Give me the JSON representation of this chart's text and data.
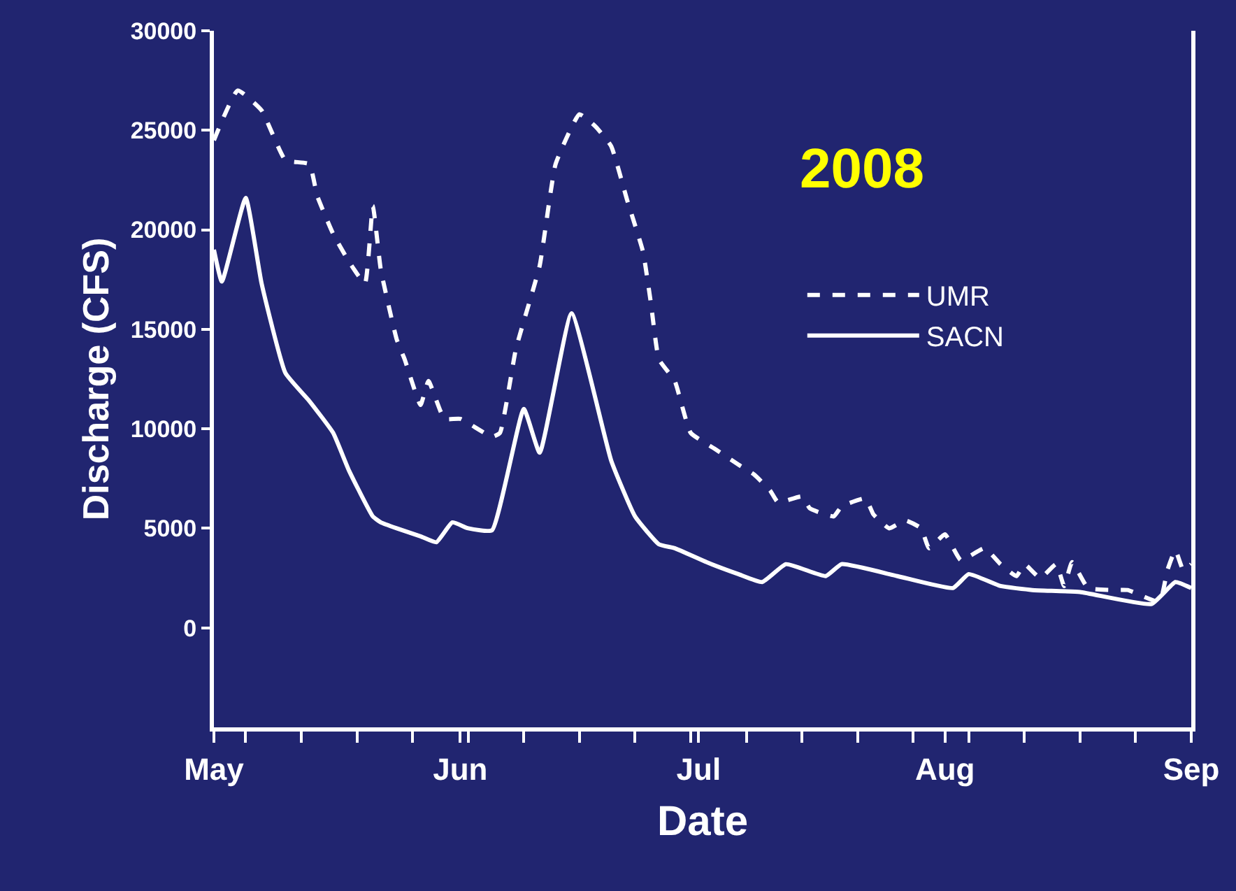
{
  "chart_data": {
    "type": "line",
    "title": "2008",
    "xlabel": "Date",
    "ylabel": "Discharge (CFS)",
    "ylim": [
      -5000,
      30000
    ],
    "yticks": [
      0,
      5000,
      10000,
      15000,
      20000,
      25000,
      30000
    ],
    "xlim": [
      "2008-05-01",
      "2008-09-01"
    ],
    "xticks": [
      {
        "value": "2008-05-01",
        "label": "May"
      },
      {
        "value": "2008-05-05",
        "label": null
      },
      {
        "value": "2008-05-12",
        "label": null
      },
      {
        "value": "2008-05-19",
        "label": null
      },
      {
        "value": "2008-05-26",
        "label": null
      },
      {
        "value": "2008-06-01",
        "label": "Jun"
      },
      {
        "value": "2008-06-02",
        "label": null
      },
      {
        "value": "2008-06-09",
        "label": null
      },
      {
        "value": "2008-06-16",
        "label": null
      },
      {
        "value": "2008-06-23",
        "label": null
      },
      {
        "value": "2008-06-30",
        "label": null
      },
      {
        "value": "2008-07-01",
        "label": "Jul"
      },
      {
        "value": "2008-07-07",
        "label": null
      },
      {
        "value": "2008-07-14",
        "label": null
      },
      {
        "value": "2008-07-21",
        "label": null
      },
      {
        "value": "2008-07-28",
        "label": null
      },
      {
        "value": "2008-08-01",
        "label": "Aug"
      },
      {
        "value": "2008-08-04",
        "label": null
      },
      {
        "value": "2008-08-11",
        "label": null
      },
      {
        "value": "2008-08-18",
        "label": null
      },
      {
        "value": "2008-08-25",
        "label": null
      },
      {
        "value": "2008-09-01",
        "label": "Sep"
      }
    ],
    "grid": false,
    "legend": "top right",
    "marker": "none",
    "series": [
      {
        "name": "UMR",
        "color": "#ffffff",
        "line_style": "dashed",
        "x": [
          "2008-05-01",
          "2008-05-04",
          "2008-05-07",
          "2008-05-10",
          "2008-05-13",
          "2008-05-14",
          "2008-05-16",
          "2008-05-18",
          "2008-05-20",
          "2008-05-21",
          "2008-05-22",
          "2008-05-24",
          "2008-05-25",
          "2008-05-27",
          "2008-05-28",
          "2008-05-30",
          "2008-06-01",
          "2008-06-05",
          "2008-06-06",
          "2008-06-08",
          "2008-06-11",
          "2008-06-13",
          "2008-06-16",
          "2008-06-18",
          "2008-06-20",
          "2008-06-22",
          "2008-06-24",
          "2008-06-25",
          "2008-06-26",
          "2008-06-28",
          "2008-06-30",
          "2008-07-03",
          "2008-07-06",
          "2008-07-08",
          "2008-07-10",
          "2008-07-11",
          "2008-07-14",
          "2008-07-15",
          "2008-07-18",
          "2008-07-19",
          "2008-07-22",
          "2008-07-23",
          "2008-07-25",
          "2008-07-27",
          "2008-07-29",
          "2008-07-30",
          "2008-08-01",
          "2008-08-03",
          "2008-08-06",
          "2008-08-08",
          "2008-08-10",
          "2008-08-11",
          "2008-08-13",
          "2008-08-15",
          "2008-08-16",
          "2008-08-17",
          "2008-08-19",
          "2008-08-22",
          "2008-08-24",
          "2008-08-28",
          "2008-08-29",
          "2008-08-30",
          "2008-08-31",
          "2008-09-01"
        ],
        "values": [
          24500,
          27000,
          26000,
          23500,
          23300,
          21700,
          19800,
          18400,
          17300,
          21200,
          18000,
          14500,
          13500,
          11200,
          12400,
          10500,
          10500,
          9600,
          9800,
          14000,
          18200,
          23300,
          25800,
          25200,
          24200,
          21500,
          18900,
          16300,
          13500,
          12400,
          9800,
          9000,
          8200,
          7700,
          6900,
          6300,
          6600,
          6000,
          5600,
          6100,
          6500,
          5700,
          5000,
          5400,
          5000,
          4000,
          4700,
          3400,
          4000,
          3200,
          2600,
          3200,
          2500,
          3200,
          2100,
          3300,
          2000,
          1900,
          1900,
          1300,
          2900,
          3900,
          2900,
          3200
        ]
      },
      {
        "name": "SACN",
        "color": "#ffffff",
        "line_style": "solid",
        "x": [
          "2008-05-01",
          "2008-05-02",
          "2008-05-05",
          "2008-05-07",
          "2008-05-10",
          "2008-05-13",
          "2008-05-16",
          "2008-05-18",
          "2008-05-21",
          "2008-05-22",
          "2008-05-24",
          "2008-05-27",
          "2008-05-29",
          "2008-05-31",
          "2008-06-02",
          "2008-06-05",
          "2008-06-09",
          "2008-06-11",
          "2008-06-15",
          "2008-06-20",
          "2008-06-23",
          "2008-06-26",
          "2008-06-28",
          "2008-07-02",
          "2008-07-06",
          "2008-07-09",
          "2008-07-12",
          "2008-07-17",
          "2008-07-19",
          "2008-07-26",
          "2008-08-02",
          "2008-08-04",
          "2008-08-08",
          "2008-08-12",
          "2008-08-18",
          "2008-08-27",
          "2008-08-30",
          "2008-09-01"
        ],
        "values": [
          19000,
          17400,
          21600,
          17300,
          12800,
          11400,
          9800,
          7900,
          5600,
          5300,
          5000,
          4600,
          4300,
          5300,
          5000,
          4900,
          11000,
          8800,
          15800,
          8400,
          5600,
          4200,
          4000,
          3300,
          2700,
          2300,
          3200,
          2600,
          3200,
          2600,
          2000,
          2700,
          2100,
          1900,
          1800,
          1200,
          2300,
          2000
        ]
      }
    ]
  }
}
